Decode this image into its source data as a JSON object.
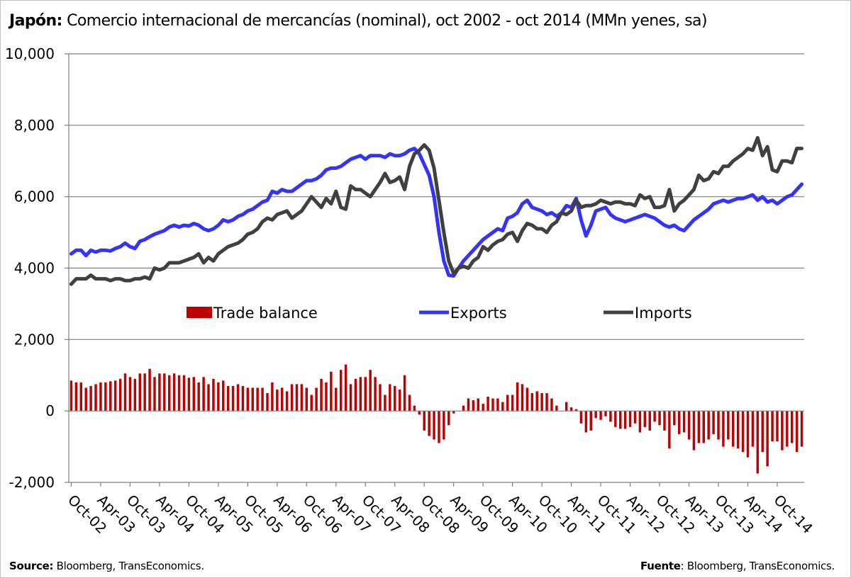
{
  "title": {
    "bold": "Japón:",
    "rest": " Comercio internacional de mercancías (nominal), oct 2002 - oct 2014 (MMn yenes, sa)"
  },
  "footer": {
    "left_bold": "Source:",
    "left_rest": " Bloomberg, TransEconomics.",
    "right_bold": "Fuente",
    "right_rest": ": Bloomberg, TransEconomics."
  },
  "colors": {
    "exports": "#3333ff",
    "imports": "#404040",
    "trade_balance": "#c00000",
    "grid": "#7f7f7f"
  },
  "chart_data": {
    "type": "line",
    "title": "Japón: Comercio internacional de mercancías (nominal), oct 2002 - oct 2014 (MMn yenes, sa)",
    "start_month": "Oct-02",
    "end_month": "Oct-14",
    "frequency": "monthly",
    "ylim": [
      -2000,
      10000
    ],
    "y_ticks": [
      "-2,000",
      "0",
      "2,000",
      "4,000",
      "6,000",
      "8,000",
      "10,000"
    ],
    "x_ticks": [
      "Oct-02",
      "Apr-03",
      "Oct-03",
      "Apr-04",
      "Oct-04",
      "Apr-05",
      "Oct-05",
      "Apr-06",
      "Oct-06",
      "Apr-07",
      "Oct-07",
      "Apr-08",
      "Oct-08",
      "Apr-09",
      "Oct-09",
      "Apr-10",
      "Oct-10",
      "Apr-11",
      "Oct-11",
      "Apr-12",
      "Oct-12",
      "Apr-13",
      "Oct-13",
      "Apr-14",
      "Oct-14"
    ],
    "grid": "horizontal",
    "legend": [
      "Trade balance",
      "Exports",
      "Imports"
    ],
    "series": [
      {
        "name": "Exports",
        "type": "line",
        "values": [
          4400,
          4500,
          4500,
          4350,
          4500,
          4450,
          4500,
          4500,
          4480,
          4550,
          4600,
          4700,
          4600,
          4550,
          4750,
          4800,
          4880,
          4950,
          5000,
          5050,
          5150,
          5200,
          5150,
          5200,
          5180,
          5250,
          5200,
          5100,
          5050,
          5100,
          5200,
          5350,
          5300,
          5350,
          5450,
          5500,
          5600,
          5650,
          5750,
          5850,
          5900,
          6150,
          6100,
          6200,
          6150,
          6150,
          6250,
          6350,
          6450,
          6450,
          6500,
          6600,
          6750,
          6800,
          6800,
          6850,
          6950,
          7050,
          7100,
          7150,
          7050,
          7150,
          7150,
          7150,
          7100,
          7200,
          7150,
          7150,
          7200,
          7300,
          7350,
          7200,
          6900,
          6600,
          6000,
          5000,
          4200,
          3800,
          3780,
          4000,
          4200,
          4350,
          4500,
          4650,
          4800,
          4900,
          5000,
          5100,
          5050,
          5400,
          5450,
          5550,
          5800,
          5900,
          5700,
          5650,
          5600,
          5500,
          5550,
          5450,
          5550,
          5750,
          5700,
          5950,
          5350,
          4900,
          5200,
          5600,
          5650,
          5700,
          5500,
          5400,
          5350,
          5300,
          5350,
          5400,
          5450,
          5500,
          5450,
          5400,
          5300,
          5200,
          5150,
          5200,
          5100,
          5050,
          5200,
          5350,
          5450,
          5550,
          5650,
          5800,
          5850,
          5900,
          5850,
          5900,
          5950,
          5950,
          6000,
          6050,
          5900,
          6000,
          5850,
          5900,
          5800,
          5900,
          6000,
          6050,
          6200,
          6350
        ]
      },
      {
        "name": "Imports",
        "type": "line",
        "values": [
          3550,
          3700,
          3700,
          3700,
          3800,
          3700,
          3700,
          3700,
          3650,
          3700,
          3700,
          3650,
          3650,
          3700,
          3700,
          3750,
          3700,
          4000,
          3950,
          4000,
          4150,
          4150,
          4150,
          4200,
          4250,
          4300,
          4400,
          4150,
          4300,
          4200,
          4400,
          4500,
          4600,
          4650,
          4700,
          4800,
          4950,
          5000,
          5100,
          5300,
          5400,
          5350,
          5500,
          5550,
          5600,
          5400,
          5500,
          5600,
          5800,
          6000,
          5850,
          5700,
          5950,
          5800,
          6150,
          5700,
          5650,
          6300,
          6200,
          6200,
          6100,
          6000,
          6200,
          6400,
          6650,
          6400,
          6450,
          6550,
          6200,
          6850,
          7200,
          7300,
          7450,
          7300,
          6800,
          5900,
          5000,
          4200,
          3850,
          4000,
          4050,
          4000,
          4200,
          4300,
          4600,
          4500,
          4650,
          4750,
          4800,
          4950,
          5000,
          4750,
          5050,
          5250,
          5200,
          5100,
          5100,
          5000,
          5200,
          5300,
          5550,
          5500,
          5600,
          5900,
          5700,
          5750,
          5750,
          5800,
          5900,
          5850,
          5800,
          5850,
          5850,
          5800,
          5800,
          5750,
          6050,
          5950,
          6000,
          5700,
          5700,
          5750,
          6200,
          5600,
          5800,
          5900,
          6050,
          6200,
          6600,
          6450,
          6500,
          6700,
          6650,
          6850,
          6850,
          7000,
          7100,
          7200,
          7350,
          7300,
          7650,
          7150,
          7400,
          6750,
          6700,
          7000,
          7000,
          6950,
          7350,
          7350
        ]
      },
      {
        "name": "Trade balance",
        "type": "bar",
        "values": [
          850,
          800,
          800,
          650,
          700,
          750,
          800,
          800,
          830,
          850,
          900,
          1050,
          950,
          900,
          1050,
          1050,
          1180,
          950,
          1050,
          1050,
          1000,
          1050,
          1000,
          1000,
          930,
          950,
          800,
          950,
          750,
          900,
          800,
          850,
          700,
          700,
          750,
          700,
          650,
          650,
          650,
          650,
          500,
          800,
          600,
          650,
          550,
          750,
          750,
          750,
          650,
          450,
          650,
          900,
          800,
          1100,
          650,
          1150,
          1300,
          750,
          900,
          950,
          950,
          1150,
          950,
          750,
          450,
          750,
          700,
          600,
          1000,
          450,
          150,
          -100,
          -550,
          -700,
          -800,
          -900,
          -800,
          -400,
          -70,
          0,
          150,
          350,
          300,
          350,
          200,
          400,
          350,
          350,
          250,
          450,
          450,
          800,
          750,
          650,
          500,
          550,
          500,
          500,
          350,
          150,
          0,
          250,
          100,
          50,
          -350,
          -600,
          -550,
          -200,
          -250,
          -150,
          -300,
          -450,
          -500,
          -500,
          -450,
          -350,
          -600,
          -450,
          -550,
          -300,
          -400,
          -550,
          -1050,
          -400,
          -650,
          -600,
          -800,
          -1100,
          -900,
          -900,
          -800,
          -650,
          -800,
          -1000,
          -800,
          -1000,
          -1050,
          -1150,
          -1300,
          -1000,
          -1750,
          -1150,
          -1550,
          -850,
          -850,
          -1100,
          -1000,
          -900,
          -1150,
          -1000
        ]
      }
    ]
  }
}
